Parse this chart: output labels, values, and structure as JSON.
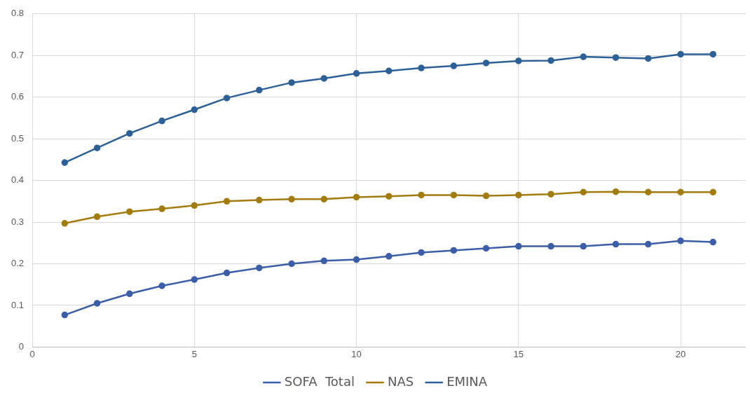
{
  "chart_data": {
    "type": "line",
    "x": [
      1,
      2,
      3,
      4,
      5,
      6,
      7,
      8,
      9,
      10,
      11,
      12,
      13,
      14,
      15,
      16,
      17,
      18,
      19,
      20,
      21
    ],
    "series": [
      {
        "name": "SOFA  Total",
        "color": "#3c5ea8",
        "values": [
          0.077,
          0.105,
          0.128,
          0.147,
          0.162,
          0.178,
          0.19,
          0.2,
          0.207,
          0.21,
          0.218,
          0.227,
          0.232,
          0.237,
          0.242,
          0.242,
          0.242,
          0.247,
          0.247,
          0.255,
          0.252
        ]
      },
      {
        "name": "NAS",
        "color": "#a27c0e",
        "values": [
          0.297,
          0.313,
          0.325,
          0.332,
          0.34,
          0.35,
          0.353,
          0.355,
          0.355,
          0.36,
          0.362,
          0.365,
          0.365,
          0.363,
          0.365,
          0.367,
          0.372,
          0.373,
          0.372,
          0.372,
          0.372
        ]
      },
      {
        "name": "EMINA",
        "color": "#2c6097",
        "values": [
          0.443,
          0.478,
          0.513,
          0.543,
          0.57,
          0.598,
          0.617,
          0.635,
          0.645,
          0.657,
          0.663,
          0.67,
          0.675,
          0.682,
          0.687,
          0.688,
          0.697,
          0.695,
          0.693,
          0.703,
          0.703
        ]
      }
    ],
    "xlim": [
      0,
      22
    ],
    "xticks": [
      0,
      5,
      10,
      15,
      20
    ],
    "ylim": [
      0,
      0.8
    ],
    "yticks": [
      0,
      0.1,
      0.2,
      0.3,
      0.4,
      0.5,
      0.6,
      0.7,
      0.8
    ],
    "grid": true,
    "legend": "bottom",
    "marker": "circle",
    "line_style": "solid"
  }
}
